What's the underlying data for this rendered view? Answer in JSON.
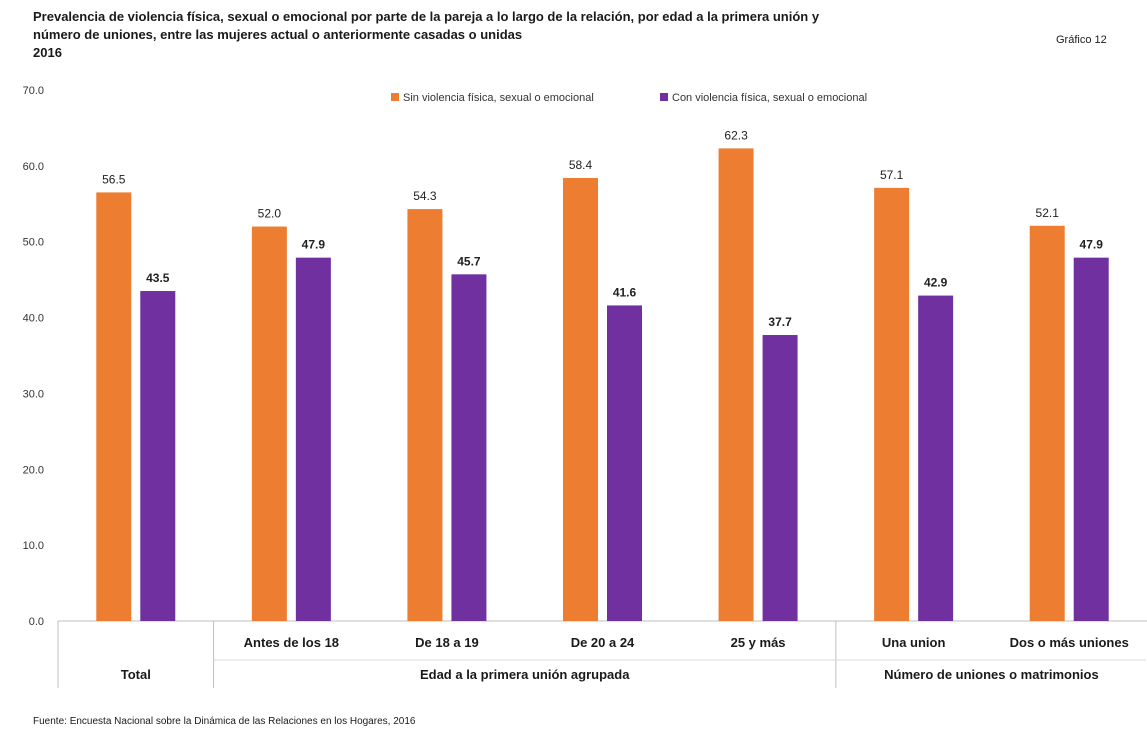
{
  "header": {
    "title_lines": [
      "Prevalencia de violencia física, sexual o emocional por parte de la pareja a lo largo de la relación, por edad a la primera unión y",
      "número de uniones, entre las mujeres actual o anteriormente casadas o unidas",
      "2016"
    ],
    "figure_label": "Gráfico 12"
  },
  "footer": {
    "source": "Fuente: Encuesta Nacional sobre la Dinámica de las Relaciones en los Hogares, 2016"
  },
  "chart_data": {
    "type": "bar",
    "title": "Prevalencia de violencia física, sexual o emocional por parte de la pareja a lo largo de la relación, por edad a la primera unión y número de uniones, entre las mujeres actual o anteriormente casadas o unidas 2016",
    "categories": [
      "Total",
      "Antes de los 18",
      "De 18 a 19",
      "De 20 a 24",
      "25 y más",
      "Una union",
      "Dos o más uniones"
    ],
    "groups": [
      {
        "label": "Total",
        "categories": [
          "Total"
        ]
      },
      {
        "label": "Edad a la primera unión agrupada",
        "categories": [
          "Antes de los 18",
          "De 18 a 19",
          "De 20 a 24",
          "25 y más"
        ]
      },
      {
        "label": "Número de uniones o matrimonios",
        "categories": [
          "Una union",
          "Dos o más uniones"
        ]
      }
    ],
    "series": [
      {
        "name": "Sin violencia física, sexual o emocional",
        "color": "#ED7D31",
        "values": [
          56.5,
          52.0,
          54.3,
          58.4,
          62.3,
          57.1,
          52.1
        ],
        "labels": [
          "56.5",
          "52.0",
          "54.3",
          "58.4",
          "62.3",
          "57.1",
          "52.1"
        ]
      },
      {
        "name": "Con violencia física, sexual o emocional",
        "color": "#7030A0",
        "values": [
          43.5,
          47.9,
          45.7,
          41.6,
          37.7,
          42.9,
          47.9
        ],
        "labels": [
          "43.5",
          "47.9",
          "45.7",
          "41.6",
          "37.7",
          "42.9",
          "47.9"
        ]
      }
    ],
    "ylim": [
      0,
      70
    ],
    "yticks": [
      "0.0",
      "10.0",
      "20.0",
      "30.0",
      "40.0",
      "50.0",
      "60.0",
      "70.0"
    ],
    "xlabel": "",
    "ylabel": "",
    "grid": false,
    "legend_position": "top-center"
  }
}
